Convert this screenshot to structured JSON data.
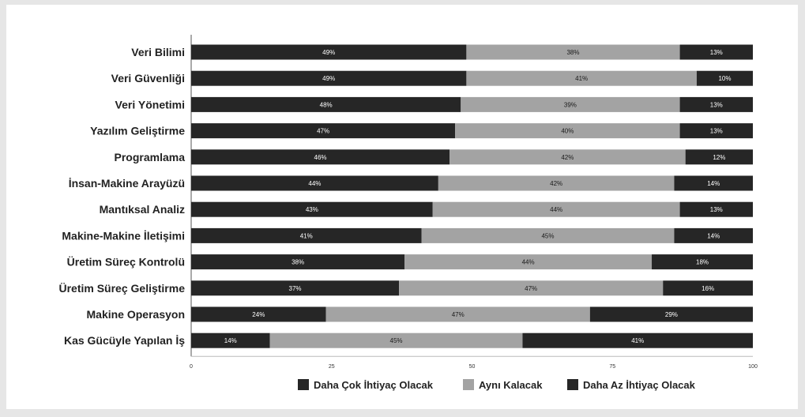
{
  "chart_data": {
    "type": "bar",
    "orientation": "horizontal",
    "stacked": true,
    "categories": [
      "Veri Bilimi",
      "Veri Güvenliği",
      "Veri Yönetimi",
      "Yazılım Geliştirme",
      "Programlama",
      "İnsan-Makine Arayüzü",
      "Mantıksal Analiz",
      "Makine-Makine İletişimi",
      "Üretim Süreç Kontrolü",
      "Üretim Süreç Geliştirme",
      "Makine Operasyon",
      "Kas Gücüyle Yapılan İş"
    ],
    "series": [
      {
        "name": "Daha Çok İhtiyaç Olacak",
        "color": "#262626",
        "values": [
          49,
          49,
          48,
          47,
          46,
          44,
          43,
          41,
          38,
          37,
          24,
          14
        ]
      },
      {
        "name": "Aynı Kalacak",
        "color": "#a3a3a3",
        "values": [
          38,
          41,
          39,
          40,
          42,
          42,
          44,
          45,
          44,
          47,
          47,
          45
        ]
      },
      {
        "name": "Daha Az İhtiyaç Olacak",
        "color": "#262626",
        "values": [
          13,
          10,
          13,
          13,
          12,
          14,
          13,
          14,
          18,
          16,
          29,
          41
        ]
      }
    ],
    "xlim": [
      0,
      100
    ],
    "xticks": [
      0,
      25,
      50,
      75,
      100
    ],
    "title": "",
    "xlabel": "",
    "ylabel": "",
    "legend_position": "bottom-right",
    "grid": false,
    "value_suffix": "%"
  }
}
